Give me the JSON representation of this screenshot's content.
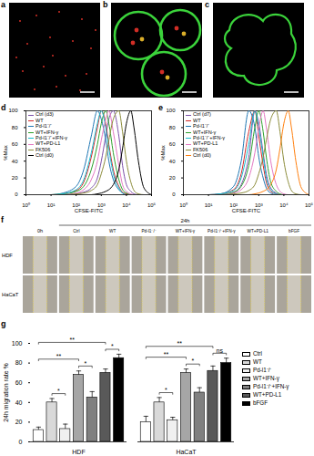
{
  "figure": {
    "images": [
      {
        "panel": "a"
      },
      {
        "panel": "b"
      },
      {
        "panel": "c"
      }
    ],
    "wound_healing": {
      "panel": "f",
      "time_labels": [
        "0h",
        "24h"
      ],
      "conditions": [
        "Ctrl",
        "WT",
        "Pd-l1⁻/⁻",
        "WT+IFN-γ",
        "Pd-l1⁻/⁻+IFN-γ",
        "WT+PD-L1",
        "bFGF"
      ],
      "rows": [
        "HDF",
        "HaCaT"
      ]
    }
  },
  "chart_data": [
    {
      "panel": "d",
      "type": "line",
      "xlabel": "CFSE-FITC",
      "ylabel": "%Max",
      "log": "x",
      "legend": "top-left",
      "x": [
        1,
        3,
        10,
        30,
        100,
        200,
        400,
        700,
        1000,
        1500,
        2000,
        3000,
        5000,
        7000,
        10000,
        15000,
        20000,
        30000,
        50000,
        100000
      ],
      "xlim": [
        1,
        100000
      ],
      "xticks": [
        {
          "value": 1,
          "label": "10⁰"
        },
        {
          "value": 10,
          "label": "10¹"
        },
        {
          "value": 100,
          "label": "10²"
        },
        {
          "value": 1000,
          "label": "10³"
        },
        {
          "value": 10000,
          "label": "10⁴"
        },
        {
          "value": 100000,
          "label": "10⁵"
        }
      ],
      "ylim": [
        0,
        100
      ],
      "yticks": [
        0,
        20,
        40,
        60,
        80,
        100
      ],
      "series": [
        {
          "name": "Ctrl (d3)",
          "color": "#7b4fa8",
          "values": [
            0,
            0,
            0,
            0,
            1,
            3,
            8,
            20,
            40,
            70,
            90,
            100,
            70,
            35,
            12,
            4,
            1,
            0,
            0,
            0
          ]
        },
        {
          "name": "WT",
          "color": "#d62728",
          "values": [
            0,
            0,
            0,
            1,
            5,
            15,
            45,
            80,
            100,
            85,
            60,
            30,
            10,
            3,
            1,
            0,
            0,
            0,
            0,
            0
          ]
        },
        {
          "name": "Pd-l1⁻/⁻",
          "color": "#1f77b4",
          "values": [
            0,
            0,
            0,
            2,
            10,
            30,
            70,
            100,
            90,
            65,
            40,
            18,
            6,
            2,
            0,
            0,
            0,
            0,
            0,
            0
          ]
        },
        {
          "name": "WT+IFN-γ",
          "color": "#2ca02c",
          "values": [
            0,
            0,
            0,
            1,
            4,
            10,
            30,
            60,
            85,
            100,
            85,
            50,
            18,
            6,
            2,
            0,
            0,
            0,
            0,
            0
          ]
        },
        {
          "name": "Pd-l1⁻/⁻+IFN-γ",
          "color": "#17becf",
          "values": [
            0,
            0,
            0,
            1,
            6,
            18,
            50,
            85,
            100,
            80,
            55,
            25,
            8,
            2,
            0,
            0,
            0,
            0,
            0,
            0
          ]
        },
        {
          "name": "WT+PD-L1",
          "color": "#e377c2",
          "values": [
            0,
            0,
            0,
            0,
            2,
            6,
            18,
            40,
            65,
            90,
            100,
            75,
            35,
            12,
            4,
            1,
            0,
            0,
            0,
            0
          ]
        },
        {
          "name": "FK506",
          "color": "#8c8c3a",
          "values": [
            0,
            0,
            0,
            0,
            1,
            2,
            5,
            12,
            25,
            45,
            65,
            90,
            100,
            75,
            40,
            15,
            5,
            1,
            0,
            0
          ]
        },
        {
          "name": "Ctrl (d0)",
          "color": "#000000",
          "values": [
            0,
            0,
            0,
            0,
            0,
            0,
            0,
            1,
            2,
            4,
            6,
            12,
            30,
            55,
            85,
            100,
            80,
            40,
            8,
            0
          ]
        }
      ]
    },
    {
      "panel": "e",
      "type": "line",
      "xlabel": "CFSE-FITC",
      "ylabel": "%Max",
      "log": "x",
      "legend": "top-left",
      "x": [
        1,
        3,
        10,
        30,
        100,
        200,
        400,
        700,
        1000,
        1500,
        2000,
        3000,
        5000,
        7000,
        10000,
        15000,
        20000,
        30000,
        50000,
        100000
      ],
      "xlim": [
        1,
        100000
      ],
      "xticks": [
        {
          "value": 1,
          "label": "10⁰"
        },
        {
          "value": 10,
          "label": "10¹"
        },
        {
          "value": 100,
          "label": "10²"
        },
        {
          "value": 1000,
          "label": "10³"
        },
        {
          "value": 10000,
          "label": "10⁴"
        },
        {
          "value": 100000,
          "label": "10⁵"
        }
      ],
      "ylim": [
        0,
        100
      ],
      "yticks": [
        0,
        20,
        40,
        60,
        80,
        100
      ],
      "series": [
        {
          "name": "Ctrl (d7)",
          "color": "#7b4fa8",
          "values": [
            0,
            0,
            0,
            0,
            3,
            12,
            45,
            100,
            85,
            50,
            25,
            8,
            2,
            0,
            0,
            0,
            0,
            0,
            0,
            0
          ]
        },
        {
          "name": "WT",
          "color": "#d62728",
          "values": [
            0,
            0,
            0,
            1,
            6,
            25,
            75,
            100,
            70,
            35,
            15,
            4,
            1,
            0,
            0,
            0,
            0,
            0,
            0,
            0
          ]
        },
        {
          "name": "Pd-l1⁻/⁻",
          "color": "#1f77b4",
          "values": [
            0,
            0,
            0,
            1,
            10,
            40,
            100,
            80,
            45,
            20,
            8,
            2,
            0,
            0,
            0,
            0,
            0,
            0,
            0,
            0
          ]
        },
        {
          "name": "WT+IFN-γ",
          "color": "#2ca02c",
          "values": [
            0,
            0,
            0,
            0,
            3,
            10,
            35,
            80,
            100,
            75,
            45,
            15,
            4,
            1,
            0,
            0,
            0,
            0,
            0,
            0
          ]
        },
        {
          "name": "Pd-l1⁻/⁻+IFN-γ",
          "color": "#17becf",
          "values": [
            0,
            0,
            0,
            1,
            5,
            20,
            60,
            100,
            80,
            45,
            20,
            6,
            1,
            0,
            0,
            0,
            0,
            0,
            0,
            0
          ]
        },
        {
          "name": "WT+PD-L1",
          "color": "#e377c2",
          "values": [
            0,
            0,
            0,
            0,
            2,
            6,
            20,
            50,
            80,
            100,
            80,
            40,
            12,
            4,
            1,
            0,
            0,
            0,
            0,
            0
          ]
        },
        {
          "name": "FK506",
          "color": "#8c8c3a",
          "values": [
            0,
            0,
            0,
            0,
            1,
            2,
            5,
            12,
            25,
            45,
            65,
            90,
            100,
            75,
            40,
            15,
            5,
            1,
            0,
            0
          ]
        },
        {
          "name": "Ctrl (d0)",
          "color": "#ff7f0e",
          "values": [
            0,
            0,
            0,
            0,
            0,
            0,
            0,
            1,
            2,
            4,
            6,
            12,
            30,
            55,
            85,
            100,
            80,
            40,
            8,
            0
          ]
        }
      ]
    },
    {
      "panel": "g",
      "type": "bar",
      "ylabel": "24h migration rate %",
      "legend": "right",
      "categories": [
        "HDF",
        "HaCaT"
      ],
      "ylim": [
        0,
        100
      ],
      "yticks": [
        0,
        20,
        40,
        60,
        80,
        100
      ],
      "series": [
        {
          "name": "Ctrl",
          "color": "#ffffff",
          "values": [
            12,
            20
          ],
          "errors": [
            3,
            6
          ]
        },
        {
          "name": "WT",
          "color": "#d9d9d9",
          "values": [
            40,
            40
          ],
          "errors": [
            4,
            5
          ]
        },
        {
          "name": "Pd-l1⁻/⁻",
          "color": "#f0f0f0",
          "values": [
            13,
            22
          ],
          "errors": [
            5,
            3
          ]
        },
        {
          "name": "WT+IFN-γ",
          "color": "#a6a6a6",
          "values": [
            68,
            70
          ],
          "errors": [
            4,
            4
          ]
        },
        {
          "name": "Pd-l1⁻/⁻+IFN-γ",
          "color": "#808080",
          "values": [
            45,
            50
          ],
          "errors": [
            6,
            5
          ]
        },
        {
          "name": "WT+PD-L1",
          "color": "#595959",
          "values": [
            70,
            72
          ],
          "errors": [
            4,
            5
          ]
        },
        {
          "name": "bFGF",
          "color": "#000000",
          "values": [
            85,
            80
          ],
          "errors": [
            4,
            5
          ]
        }
      ],
      "significance": [
        {
          "group": "HDF",
          "from": "WT",
          "to": "Pd-l1⁻/⁻",
          "label": "*"
        },
        {
          "group": "HDF",
          "from": "Ctrl",
          "to": "WT+IFN-γ",
          "label": "**"
        },
        {
          "group": "HDF",
          "from": "WT+IFN-γ",
          "to": "Pd-l1⁻/⁻+IFN-γ",
          "label": "*"
        },
        {
          "group": "HDF",
          "from": "Ctrl",
          "to": "WT+PD-L1",
          "label": "**"
        },
        {
          "group": "HDF",
          "from": "WT+PD-L1",
          "to": "bFGF",
          "label": "*"
        },
        {
          "group": "HaCaT",
          "from": "WT",
          "to": "Pd-l1⁻/⁻",
          "label": "*"
        },
        {
          "group": "HaCaT",
          "from": "Ctrl",
          "to": "WT+IFN-γ",
          "label": "**"
        },
        {
          "group": "HaCaT",
          "from": "WT+IFN-γ",
          "to": "Pd-l1⁻/⁻+IFN-γ",
          "label": "*"
        },
        {
          "group": "HaCaT",
          "from": "Ctrl",
          "to": "WT+PD-L1",
          "label": "**"
        },
        {
          "group": "HaCaT",
          "from": "WT+PD-L1",
          "to": "bFGF",
          "label": "ns"
        }
      ]
    }
  ]
}
